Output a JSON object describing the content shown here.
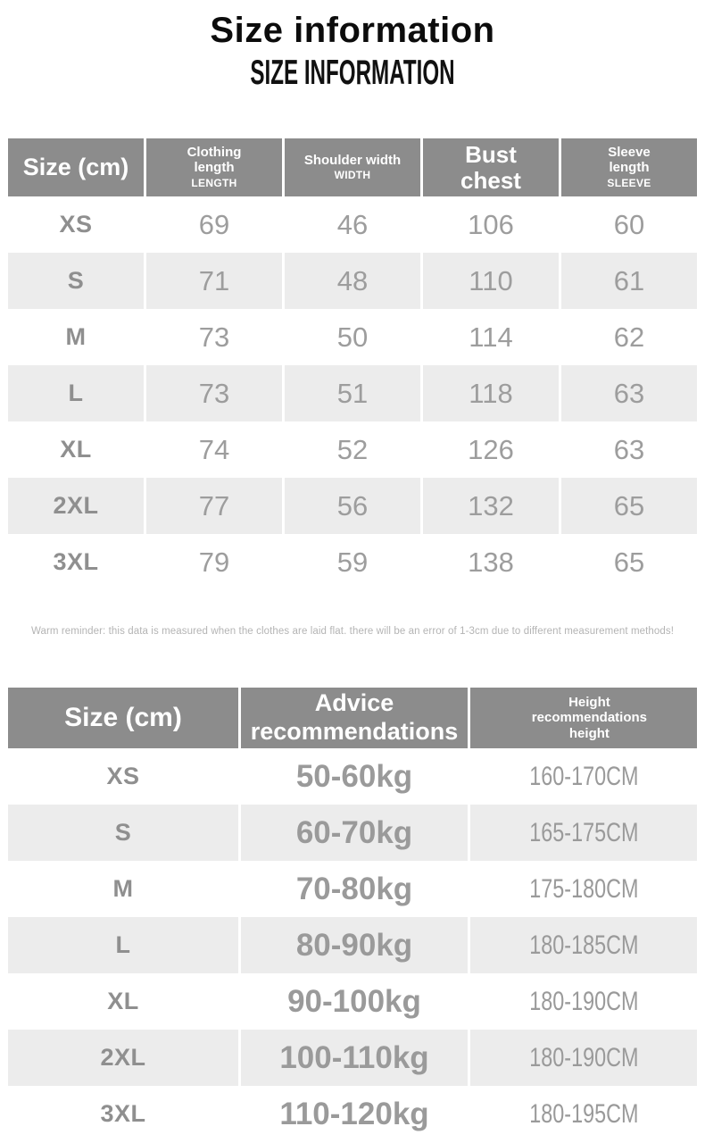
{
  "page": {
    "title": "Size information",
    "subtitle": "SIZE INFORMATION"
  },
  "colors": {
    "header_bg": "#8c8c8c",
    "header_text": "#ffffff",
    "alt_row_bg": "#ececec",
    "size_label_text": "#8f8f8f",
    "value_text": "#9d9d9d",
    "note_text": "#b4b4b4",
    "title_text": "#0c0c0c"
  },
  "size_table": {
    "header": {
      "size": "Size (cm)",
      "col1_main": "Clothing\nlength",
      "col1_sub": "LENGTH",
      "col2_main": "Shoulder width",
      "col2_sub": "WIDTH",
      "col3_main": "Bust\nchest",
      "col4_main": "Sleeve\nlength",
      "col4_sub": "SLEEVE"
    },
    "rows": [
      {
        "size": "XS",
        "values": [
          "69",
          "46",
          "106",
          "60"
        ]
      },
      {
        "size": "S",
        "values": [
          "71",
          "48",
          "110",
          "61"
        ]
      },
      {
        "size": "M",
        "values": [
          "73",
          "50",
          "114",
          "62"
        ]
      },
      {
        "size": "L",
        "values": [
          "73",
          "51",
          "118",
          "63"
        ]
      },
      {
        "size": "XL",
        "values": [
          "74",
          "52",
          "126",
          "63"
        ]
      },
      {
        "size": "2XL",
        "values": [
          "77",
          "56",
          "132",
          "65"
        ]
      },
      {
        "size": "3XL",
        "values": [
          "79",
          "59",
          "138",
          "65"
        ]
      }
    ]
  },
  "note": "Warm reminder: this data is measured when the clothes are laid flat. there will be an error of 1-3cm due to different measurement methods!",
  "recommendation_table": {
    "header": {
      "size": "Size (cm)",
      "weight": "Advice\nrecommendations",
      "height": "Height\nrecommendations\nheight"
    },
    "rows": [
      {
        "size": "XS",
        "weight": "50-60kg",
        "height": "160-170CM"
      },
      {
        "size": "S",
        "weight": "60-70kg",
        "height": "165-175CM"
      },
      {
        "size": "M",
        "weight": "70-80kg",
        "height": "175-180CM"
      },
      {
        "size": "L",
        "weight": "80-90kg",
        "height": "180-185CM"
      },
      {
        "size": "XL",
        "weight": "90-100kg",
        "height": "180-190CM"
      },
      {
        "size": "2XL",
        "weight": "100-110kg",
        "height": "180-190CM"
      },
      {
        "size": "3XL",
        "weight": "110-120kg",
        "height": "180-195CM"
      }
    ]
  },
  "chart_data": [
    {
      "type": "table",
      "title": "Size information",
      "columns": [
        "Size (cm)",
        "Clothing length LENGTH",
        "Shoulder width WIDTH",
        "Bust chest",
        "Sleeve length SLEEVE"
      ],
      "rows": [
        [
          "XS",
          69,
          46,
          106,
          60
        ],
        [
          "S",
          71,
          48,
          110,
          61
        ],
        [
          "M",
          73,
          50,
          114,
          62
        ],
        [
          "L",
          73,
          51,
          118,
          63
        ],
        [
          "XL",
          74,
          52,
          126,
          63
        ],
        [
          "2XL",
          77,
          56,
          132,
          65
        ],
        [
          "3XL",
          79,
          59,
          138,
          65
        ]
      ]
    },
    {
      "type": "table",
      "title": "Advice / Height recommendations",
      "columns": [
        "Size (cm)",
        "Advice recommendations (weight)",
        "Height recommendations (height)"
      ],
      "rows": [
        [
          "XS",
          "50-60kg",
          "160-170CM"
        ],
        [
          "S",
          "60-70kg",
          "165-175CM"
        ],
        [
          "M",
          "70-80kg",
          "175-180CM"
        ],
        [
          "L",
          "80-90kg",
          "180-185CM"
        ],
        [
          "XL",
          "90-100kg",
          "180-190CM"
        ],
        [
          "2XL",
          "100-110kg",
          "180-190CM"
        ],
        [
          "3XL",
          "110-120kg",
          "180-195CM"
        ]
      ]
    }
  ]
}
